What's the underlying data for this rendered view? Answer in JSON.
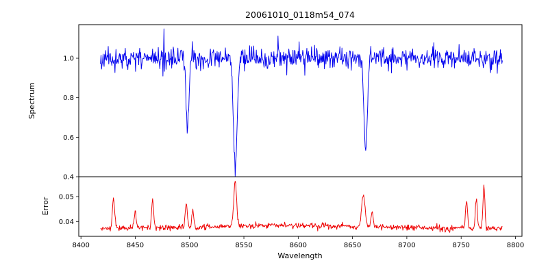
{
  "title": "20061010_0118m54_074",
  "axes": {
    "xlabel": "Wavelength",
    "ylabel_spectrum": "Spectrum",
    "ylabel_error": "Error"
  },
  "chart_data": {
    "type": "line",
    "title": "20061010_0118m54_074",
    "xlabel": "Wavelength",
    "legend": "none",
    "grid": false,
    "xlim": [
      8398,
      8806
    ],
    "xticks": [
      8400,
      8450,
      8500,
      8550,
      8600,
      8650,
      8700,
      8750,
      8800
    ],
    "xtick_labels": [
      "8400",
      "8450",
      "8500",
      "8550",
      "8600",
      "8650",
      "8700",
      "8750",
      "8800"
    ],
    "x_data_range": [
      8418,
      8788
    ],
    "n_points": 780,
    "seed": 11,
    "panels": [
      {
        "name": "spectrum",
        "ylabel": "Spectrum",
        "color": "#0000ee",
        "ylim": [
          0.4,
          1.17
        ],
        "yticks": [
          0.4,
          0.6,
          0.8,
          1.0
        ],
        "ytick_labels": [
          "0.4",
          "0.6",
          "0.8",
          "1.0"
        ],
        "baseline": 1.0,
        "noise_sigma": 0.025,
        "features": [
          {
            "center": 8498.0,
            "amplitude": -0.35,
            "sigma": 1.3
          },
          {
            "center": 8542.1,
            "amplitude": -0.56,
            "sigma": 1.7
          },
          {
            "center": 8662.1,
            "amplitude": -0.47,
            "sigma": 1.5
          }
        ]
      },
      {
        "name": "error",
        "ylabel": "Error",
        "color": "#ee0000",
        "ylim": [
          0.034,
          0.058
        ],
        "yticks": [
          0.04,
          0.05
        ],
        "ytick_labels": [
          "0.04",
          "0.05"
        ],
        "baseline": 0.0371,
        "noise_sigma": 0.00055,
        "features": [
          {
            "center": 8590,
            "amplitude": 0.0012,
            "sigma": 80
          },
          {
            "center": 8430,
            "amplitude": 0.012,
            "sigma": 1.0
          },
          {
            "center": 8450,
            "amplitude": 0.007,
            "sigma": 0.9
          },
          {
            "center": 8466,
            "amplitude": 0.011,
            "sigma": 1.0
          },
          {
            "center": 8497,
            "amplitude": 0.009,
            "sigma": 1.0
          },
          {
            "center": 8503,
            "amplitude": 0.007,
            "sigma": 0.9
          },
          {
            "center": 8542,
            "amplitude": 0.018,
            "sigma": 1.3
          },
          {
            "center": 8660,
            "amplitude": 0.013,
            "sigma": 1.6
          },
          {
            "center": 8668,
            "amplitude": 0.006,
            "sigma": 1.0
          },
          {
            "center": 8755,
            "amplitude": 0.011,
            "sigma": 0.9
          },
          {
            "center": 8764,
            "amplitude": 0.012,
            "sigma": 0.9
          },
          {
            "center": 8771,
            "amplitude": 0.017,
            "sigma": 0.9
          }
        ]
      }
    ]
  }
}
